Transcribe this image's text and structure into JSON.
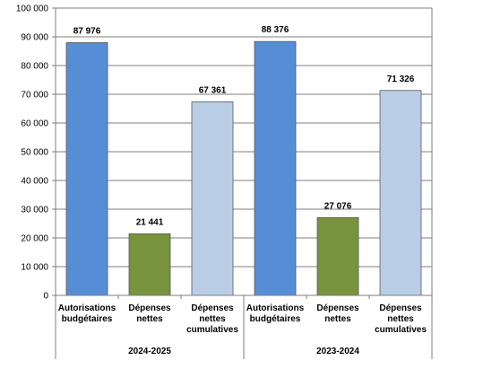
{
  "chart_data": {
    "type": "bar",
    "title": "",
    "xlabel": "",
    "ylabel": "",
    "ylim": [
      0,
      100000
    ],
    "y_ticks": [
      "0",
      "10 000",
      "20 000",
      "30 000",
      "40 000",
      "50 000",
      "60 000",
      "70 000",
      "80 000",
      "90 000",
      "100 000"
    ],
    "grid": true,
    "legend": "none",
    "groups": [
      {
        "label": "2024-2025",
        "bars": [
          {
            "category": [
              "Autorisations",
              "budgétaires"
            ],
            "value": 87976,
            "value_label": "87 976",
            "color": "#558ed5"
          },
          {
            "category": [
              "Dépenses",
              "nettes"
            ],
            "value": 21441,
            "value_label": "21 441",
            "color": "#77933c"
          },
          {
            "category": [
              "Dépenses",
              "nettes",
              "cumulatives"
            ],
            "value": 67361,
            "value_label": "67 361",
            "color": "#b9cde5"
          }
        ]
      },
      {
        "label": "2023-2024",
        "bars": [
          {
            "category": [
              "Autorisations",
              "budgétaires"
            ],
            "value": 88376,
            "value_label": "88 376",
            "color": "#558ed5"
          },
          {
            "category": [
              "Dépenses",
              "nettes"
            ],
            "value": 27076,
            "value_label": "27 076",
            "color": "#77933c"
          },
          {
            "category": [
              "Dépenses",
              "nettes",
              "cumulatives"
            ],
            "value": 71326,
            "value_label": "71 326",
            "color": "#b9cde5"
          }
        ]
      }
    ]
  }
}
